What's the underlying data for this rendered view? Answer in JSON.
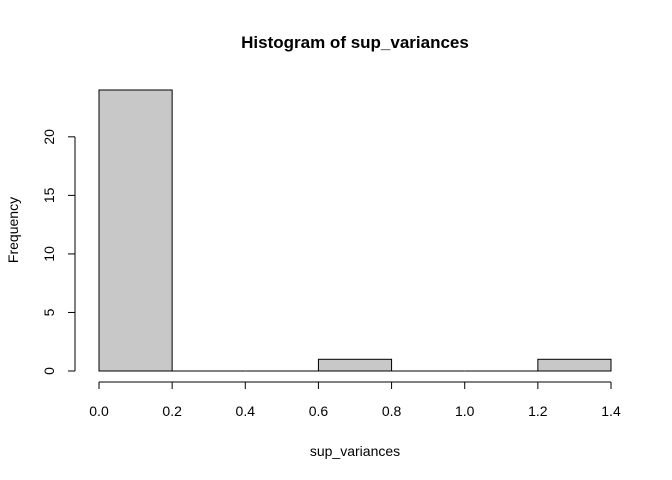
{
  "chart_data": {
    "type": "bar",
    "title": "Histogram of sup_variances",
    "xlabel": "sup_variances",
    "ylabel": "Frequency",
    "bins": [
      {
        "x0": 0.0,
        "x1": 0.2,
        "count": 24
      },
      {
        "x0": 0.2,
        "x1": 0.4,
        "count": 0
      },
      {
        "x0": 0.4,
        "x1": 0.6,
        "count": 0
      },
      {
        "x0": 0.6,
        "x1": 0.8,
        "count": 1
      },
      {
        "x0": 0.8,
        "x1": 1.0,
        "count": 0
      },
      {
        "x0": 1.0,
        "x1": 1.2,
        "count": 0
      },
      {
        "x0": 1.2,
        "x1": 1.4,
        "count": 1
      }
    ],
    "xlim": [
      0.0,
      1.4
    ],
    "ylim": [
      0,
      24
    ],
    "x_ticks": [
      {
        "value": 0.0,
        "label": "0.0"
      },
      {
        "value": 0.2,
        "label": "0.2"
      },
      {
        "value": 0.4,
        "label": "0.4"
      },
      {
        "value": 0.6,
        "label": "0.6"
      },
      {
        "value": 0.8,
        "label": "0.8"
      },
      {
        "value": 1.0,
        "label": "1.0"
      },
      {
        "value": 1.2,
        "label": "1.2"
      },
      {
        "value": 1.4,
        "label": "1.4"
      }
    ],
    "y_ticks": [
      {
        "value": 0,
        "label": "0"
      },
      {
        "value": 5,
        "label": "5"
      },
      {
        "value": 10,
        "label": "10"
      },
      {
        "value": 15,
        "label": "15"
      },
      {
        "value": 20,
        "label": "20"
      }
    ],
    "grid": false,
    "bar_color": "#c8c8c8",
    "edge_color": "#000000"
  }
}
